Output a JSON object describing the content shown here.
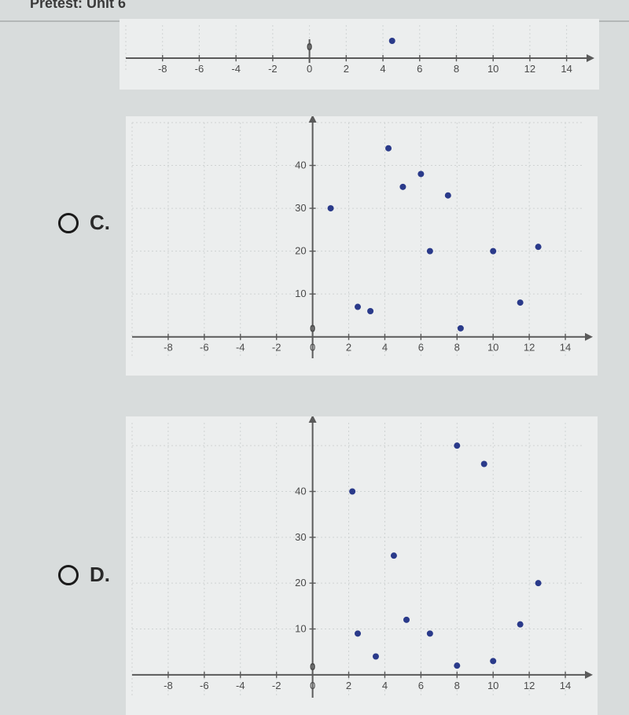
{
  "header": {
    "breadcrumb": "Pretest: Unit 6"
  },
  "options": {
    "c": {
      "label": "C."
    },
    "d": {
      "label": "D."
    }
  },
  "numberline": {
    "type": "scatter-1d",
    "xlim": [
      -10,
      15
    ],
    "xticks": [
      -8,
      -6,
      -4,
      -2,
      0,
      2,
      4,
      6,
      8,
      10,
      12,
      14
    ],
    "origin_label": "0",
    "points_x": [
      4.5
    ],
    "background_color": "#eceeee",
    "grid_color": "#cfd3d3",
    "axis_color": "#5a5a5a",
    "point_color": "#2a3a8a",
    "point_radius": 4,
    "tick_fontsize": 13
  },
  "chart_c": {
    "type": "scatter",
    "xlim": [
      -10,
      15
    ],
    "ylim": [
      -5,
      50
    ],
    "xticks": [
      -8,
      -6,
      -4,
      -2,
      0,
      2,
      4,
      6,
      8,
      10,
      12,
      14
    ],
    "yticks": [
      10,
      20,
      30,
      40
    ],
    "origin_label": "0",
    "points": [
      {
        "x": 1,
        "y": 30
      },
      {
        "x": 2.5,
        "y": 7
      },
      {
        "x": 3.2,
        "y": 6
      },
      {
        "x": 4.2,
        "y": 44
      },
      {
        "x": 5,
        "y": 35
      },
      {
        "x": 6,
        "y": 38
      },
      {
        "x": 6.5,
        "y": 20
      },
      {
        "x": 7.5,
        "y": 33
      },
      {
        "x": 8.2,
        "y": 2
      },
      {
        "x": 10,
        "y": 20
      },
      {
        "x": 11.5,
        "y": 8
      },
      {
        "x": 12.5,
        "y": 21
      }
    ],
    "background_color": "#eceeee",
    "grid_color": "#cfd3d3",
    "axis_color": "#5a5a5a",
    "point_color": "#2a3a8a",
    "point_radius": 4,
    "tick_fontsize": 13
  },
  "chart_d": {
    "type": "scatter",
    "xlim": [
      -10,
      15
    ],
    "ylim": [
      -5,
      55
    ],
    "xticks": [
      -8,
      -6,
      -4,
      -2,
      0,
      2,
      4,
      6,
      8,
      10,
      12,
      14
    ],
    "yticks": [
      10,
      20,
      30,
      40
    ],
    "origin_label": "0",
    "points": [
      {
        "x": 2.2,
        "y": 40
      },
      {
        "x": 2.5,
        "y": 9
      },
      {
        "x": 3.5,
        "y": 4
      },
      {
        "x": 4.5,
        "y": 26
      },
      {
        "x": 5.2,
        "y": 12
      },
      {
        "x": 6.5,
        "y": 9
      },
      {
        "x": 8,
        "y": 50
      },
      {
        "x": 8,
        "y": 2
      },
      {
        "x": 9.5,
        "y": 46
      },
      {
        "x": 10,
        "y": 3
      },
      {
        "x": 11.5,
        "y": 11
      },
      {
        "x": 12.5,
        "y": 20
      }
    ],
    "background_color": "#eceeee",
    "grid_color": "#cfd3d3",
    "axis_color": "#5a5a5a",
    "point_color": "#2a3a8a",
    "point_radius": 4,
    "tick_fontsize": 13
  }
}
